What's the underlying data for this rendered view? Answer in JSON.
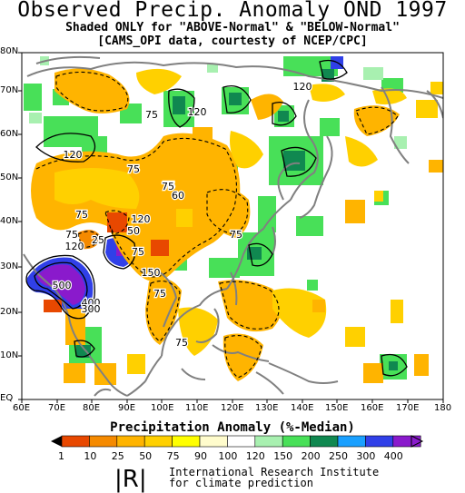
{
  "titles": {
    "main": "Observed Precip. Anomaly OND 1997",
    "sub1": "Shaded ONLY for \"ABOVE-Normal\" & \"BELOW-Normal\"",
    "sub2": "[CAMS_OPI data, courtesty of NCEP/CPC]"
  },
  "axes": {
    "lat_labels": [
      "80N",
      "70N",
      "60N",
      "50N",
      "40N",
      "30N",
      "20N",
      "10N",
      "EQ"
    ],
    "lon_labels": [
      "60E",
      "70E",
      "80E",
      "90E",
      "100E",
      "110E",
      "120E",
      "130E",
      "140E",
      "150E",
      "160E",
      "170E",
      "180"
    ]
  },
  "colorbar": {
    "title": "Precipitation Anomaly (%-Median)",
    "labels": [
      "1",
      "10",
      "25",
      "50",
      "75",
      "90",
      "100",
      "120",
      "150",
      "200",
      "250",
      "300",
      "400"
    ],
    "colors": [
      "#e84800",
      "#f58a00",
      "#ffb400",
      "#ffd000",
      "#ffff00",
      "#fffccc",
      "#ffffff",
      "#a8f0b0",
      "#48e058",
      "#108850",
      "#1aa0ff",
      "#3040e8",
      "#8a1acc"
    ]
  },
  "contour_labels": [
    "120",
    "75",
    "120",
    "75",
    "75",
    "120",
    "75",
    "75",
    "60",
    "120",
    "75",
    "75",
    "120",
    "50",
    "25",
    "150",
    "500",
    "400",
    "300",
    "75",
    "75",
    "75"
  ],
  "footer": {
    "logo": "|R|",
    "line1": "International Research Institute",
    "line2": "for climate prediction"
  }
}
